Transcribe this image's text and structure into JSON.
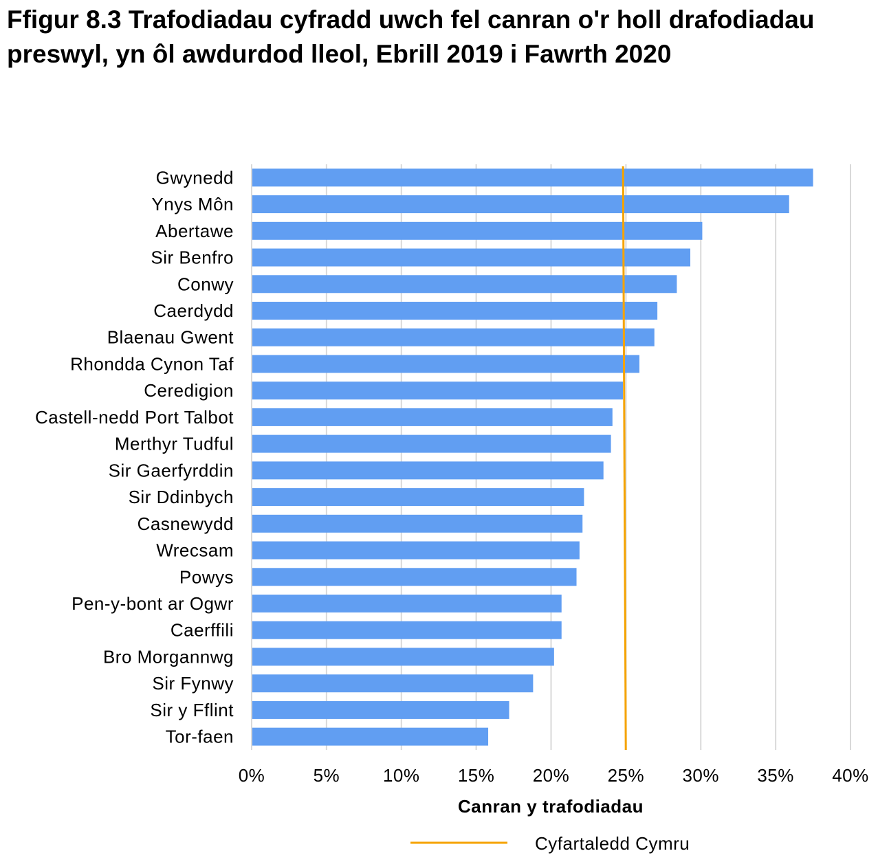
{
  "title": "Ffigur 8.3  Trafodiadau cyfradd uwch fel canran o'r holl drafodiadau preswyl, yn ôl awdurdod lleol, Ebrill 2019 i Fawrth 2020",
  "chart_data": {
    "type": "bar",
    "orientation": "horizontal",
    "title": "Ffigur 8.3  Trafodiadau cyfradd uwch fel canran o'r holl drafodiadau preswyl, yn ôl awdurdod lleol, Ebrill 2019 i Fawrth 2020",
    "categories": [
      "Gwynedd",
      "Ynys Môn",
      "Abertawe",
      "Sir Benfro",
      "Conwy",
      "Caerdydd",
      "Blaenau Gwent",
      "Rhondda Cynon Taf",
      "Ceredigion",
      "Castell-nedd Port Talbot",
      "Merthyr Tudful",
      "Sir Gaerfyrddin",
      "Sir Ddinbych",
      "Casnewydd",
      "Wrecsam",
      "Powys",
      "Pen-y-bont ar Ogwr",
      "Caerffili",
      "Bro Morgannwg",
      "Sir Fynwy",
      "Sir y Fflint",
      "Tor-faen"
    ],
    "values": [
      37.5,
      35.9,
      30.1,
      29.3,
      28.4,
      27.1,
      26.9,
      25.9,
      24.8,
      24.1,
      24.0,
      23.5,
      22.2,
      22.1,
      21.9,
      21.7,
      20.7,
      20.7,
      20.2,
      18.8,
      17.2,
      15.8
    ],
    "xlabel": "Canran y trafodiadau",
    "ylabel": "",
    "xlim": [
      0,
      40
    ],
    "xticks": [
      "0%",
      "5%",
      "10%",
      "15%",
      "20%",
      "25%",
      "30%",
      "35%",
      "40%"
    ],
    "grid": "vertical",
    "bar_color": "#619ef2",
    "reference_line": {
      "name": "Cyfartaledd  Cymru",
      "value": 24.9,
      "color": "#f5a300"
    },
    "legend": "bottom"
  }
}
